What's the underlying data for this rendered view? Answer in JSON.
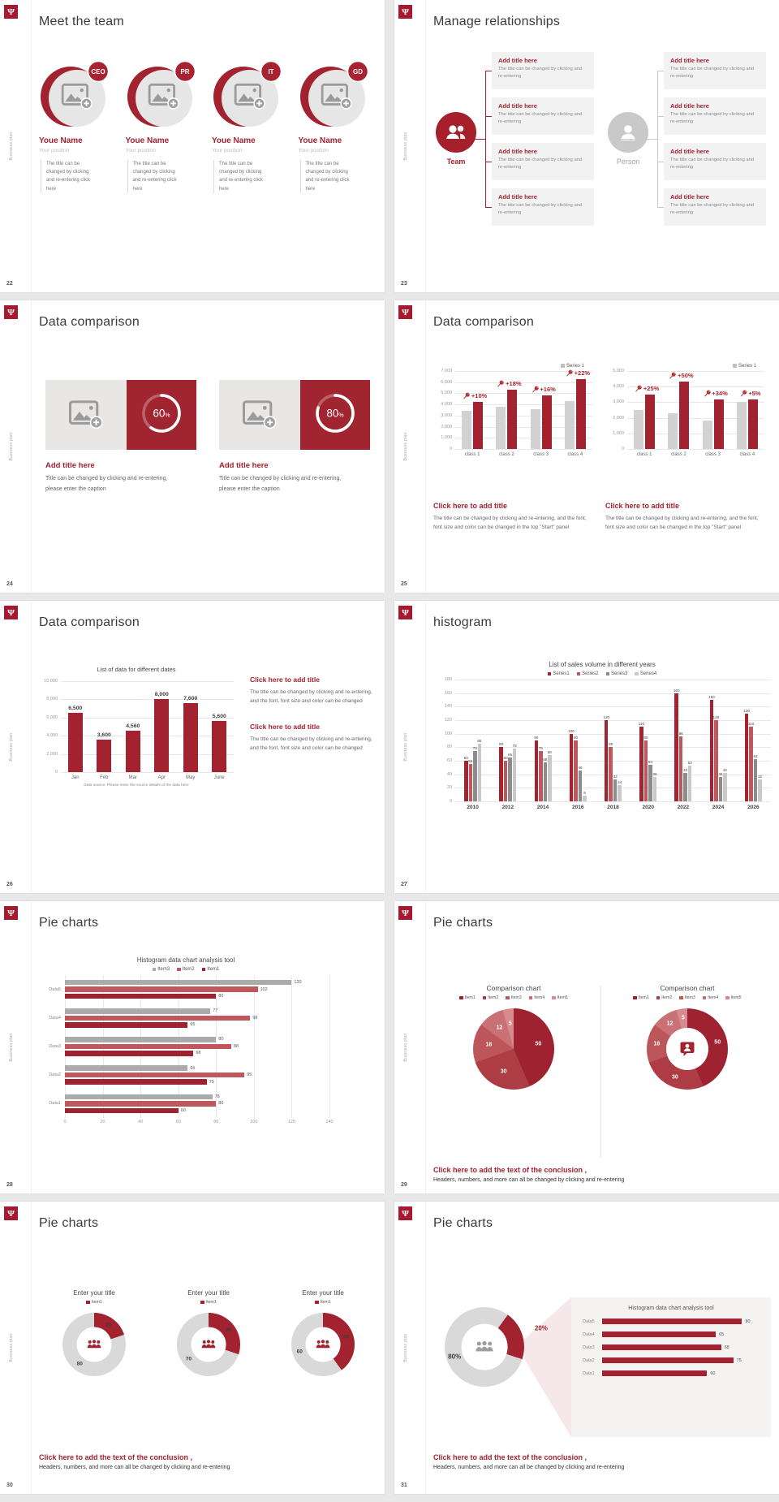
{
  "theme": {
    "crimson": "#a2222f",
    "logo_bg": "#a6192e",
    "red_mid": "#bf585c",
    "gray_series": "#8c8c8c",
    "gray_bar": "#d2d2d2",
    "gray_light": "#c9c9c9",
    "box_bg": "#f2f2f2"
  },
  "common": {
    "side_text": "Business plan",
    "logo_glyph": "Ψ"
  },
  "slides": {
    "s22": {
      "page": "22",
      "title": "Meet the team",
      "members": [
        {
          "badge": "CEO",
          "name": "Youe Name",
          "position": "Your position",
          "desc": "The title can be changed by clicking and re-entering click here"
        },
        {
          "badge": "PR",
          "name": "Youe Name",
          "position": "Your position",
          "desc": "The title can be changed by clicking and re-entering click here"
        },
        {
          "badge": "IT",
          "name": "Youe Name",
          "position": "Your position",
          "desc": "The title can be changed by clicking and re-entering click here"
        },
        {
          "badge": "GD",
          "name": "Youe Name",
          "position": "Your position",
          "desc": "The title can be changed by clicking and re-entering click here"
        }
      ]
    },
    "s23": {
      "page": "23",
      "title": "Manage relationships",
      "team_label": "Team",
      "person_label": "Person",
      "box_count": 4,
      "box_title": "Add title here",
      "box_desc": "The title can be changed by clicking and re-entering"
    },
    "s24": {
      "page": "24",
      "title": "Data comparison",
      "percent_suffix": "%",
      "cards": [
        {
          "percent": 60,
          "percent_label": "60",
          "heading": "Add title here",
          "caption": "Title can be changed by clicking and re-entering, please enter the caption"
        },
        {
          "percent": 80,
          "percent_label": "80",
          "heading": "Add title here",
          "caption": "Title can be changed by clicking and re-entering, please enter the caption"
        }
      ]
    },
    "s25": {
      "page": "25",
      "title": "Data comparison",
      "caption_title": "Click here to add title",
      "caption_body": "The title can be changed by clicking and re-entering, and the font, font size and color can be changed in the top \"Start\" panel"
    },
    "s26": {
      "page": "26",
      "title": "Data comparison",
      "blocks": [
        {
          "t": "Click here to add title",
          "d": "The title can be changed by clicking and re-entering, and the font, font size and color can be changed"
        },
        {
          "t": "Click here to add title",
          "d": "The title can be changed by clicking and re-entering, and the font, font size and color can be changed"
        }
      ]
    },
    "s27": {
      "page": "27",
      "title": "histogram"
    },
    "s28": {
      "page": "28",
      "title": "Pie charts"
    },
    "s29": {
      "page": "29",
      "title": "Pie charts",
      "conclusion_title": "Click here to add the text of the conclusion ,",
      "conclusion_body": "Headers, numbers, and more can all be changed by clicking and re-entering"
    },
    "s30": {
      "page": "30",
      "title": "Pie charts",
      "conclusion_title": "Click here to add the text of the conclusion ,",
      "conclusion_body": "Headers, numbers, and more can all be changed by clicking and re-entering"
    },
    "s31": {
      "page": "31",
      "title": "Pie charts",
      "conclusion_title": "Click here to add the text of the conclusion ,",
      "conclusion_body": "Headers, numbers, and more can all be changed by clicking and re-entering"
    }
  },
  "chart_data": [
    {
      "id": "c25a",
      "type": "bar",
      "legend": [
        "Series 1"
      ],
      "legend_colors": [
        "#c0c0c0"
      ],
      "ymax": 7000,
      "yticks": [
        "7,000",
        "6,000",
        "5,000",
        "4,000",
        "3,000",
        "2,000",
        "1,000",
        "0"
      ],
      "categories": [
        "class 1",
        "class 2",
        "class 3",
        "class 4"
      ],
      "series": [
        {
          "name": "",
          "color": "#d2d2d2",
          "values": [
            3400,
            3800,
            3600,
            4300
          ]
        },
        {
          "name": "Series 1",
          "color": "#a2222f",
          "values": [
            4200,
            5300,
            4800,
            6300
          ]
        }
      ],
      "annotations": {
        "series": 1,
        "labels": [
          "+10%",
          "+18%",
          "+16%",
          "+22%"
        ]
      }
    },
    {
      "id": "c25b",
      "type": "bar",
      "legend": [
        "Series 1"
      ],
      "legend_colors": [
        "#c0c0c0"
      ],
      "ymax": 5000,
      "yticks": [
        "5,000",
        "4,000",
        "3,000",
        "2,000",
        "1,000",
        "0"
      ],
      "categories": [
        "class 1",
        "class 2",
        "class 3",
        "class 4"
      ],
      "series": [
        {
          "name": "",
          "color": "#d2d2d2",
          "values": [
            2500,
            2300,
            1800,
            3000
          ]
        },
        {
          "name": "Series 1",
          "color": "#a2222f",
          "values": [
            3500,
            4300,
            3200,
            3200
          ]
        }
      ],
      "annotations": {
        "series": 1,
        "labels": [
          "+25%",
          "+50%",
          "+34%",
          "+5%"
        ]
      }
    },
    {
      "id": "c26",
      "type": "bar",
      "title": "List of data for different dates",
      "ymax": 10000,
      "show_labels": true,
      "yticks": [
        "10,000",
        "8,000",
        "6,000",
        "4,000",
        "2,000",
        "0"
      ],
      "categories": [
        "Jan",
        "Feb",
        "Mar",
        "Apr",
        "May",
        "June"
      ],
      "series": [
        {
          "name": "",
          "color": "#a2222f",
          "values": [
            6500,
            3600,
            4560,
            8000,
            7600,
            5600
          ],
          "value_labels": [
            "6,500",
            "3,600",
            "4,560",
            "8,000",
            "7,600",
            "5,600"
          ]
        }
      ],
      "footnote": "Data source: Please enter the source details of the data here"
    },
    {
      "id": "c27",
      "type": "bar",
      "title": "List of sales volume in different years",
      "ymax": 180,
      "show_labels": true,
      "legend": [
        "Series1",
        "Series2",
        "Series3",
        "Series4"
      ],
      "legend_colors": [
        "#a32330",
        "#bf585c",
        "#8c8c8c",
        "#c9c9c9"
      ],
      "yticks": [
        "180",
        "160",
        "140",
        "120",
        "100",
        "80",
        "60",
        "40",
        "20",
        "0"
      ],
      "categories": [
        "2010",
        "2012",
        "2014",
        "2016",
        "2018",
        "2020",
        "2022",
        "2024",
        "2026"
      ],
      "series": [
        {
          "name": "Series1",
          "color": "#a32330",
          "values": [
            60,
            80,
            90,
            100,
            120,
            110,
            160,
            150,
            130
          ]
        },
        {
          "name": "Series2",
          "color": "#bf585c",
          "values": [
            55,
            60,
            75,
            90,
            80,
            90,
            96,
            120,
            110
          ]
        },
        {
          "name": "Series3",
          "color": "#8c8c8c",
          "values": [
            75,
            65,
            58,
            46,
            32,
            54,
            42,
            36,
            62
          ]
        },
        {
          "name": "Series4",
          "color": "#c9c9c9",
          "values": [
            85,
            78,
            68,
            9,
            24,
            36,
            53,
            42,
            32
          ]
        }
      ]
    },
    {
      "id": "c28",
      "type": "bar-horizontal",
      "title": "Histogram data chart analysis tool",
      "xmax": 140,
      "legend": [
        "Item3",
        "Item2",
        "Item1"
      ],
      "legend_colors": [
        "#ababab",
        "#bf585c",
        "#9e2230"
      ],
      "xticks": [
        "0",
        "20",
        "40",
        "60",
        "80",
        "100",
        "120",
        "140"
      ],
      "categories": [
        "Data5",
        "Data4",
        "Data3",
        "Data2",
        "Data1"
      ],
      "series": [
        {
          "name": "Item3",
          "color": "#ababab",
          "values": [
            120,
            77,
            80,
            65,
            78
          ]
        },
        {
          "name": "Item2",
          "color": "#bf585c",
          "values": [
            102,
            98,
            88,
            95,
            80
          ]
        },
        {
          "name": "Item1",
          "color": "#9e2230",
          "values": [
            80,
            65,
            68,
            75,
            60
          ]
        }
      ]
    },
    {
      "id": "c29a",
      "type": "pie",
      "title": "Comparison chart",
      "legend": [
        "Item1",
        "Item2",
        "Item3",
        "Item4",
        "Item5"
      ],
      "values": [
        50,
        30,
        18,
        12,
        5
      ],
      "colors": [
        "#9e2230",
        "#ad3c44",
        "#bc565b",
        "#ca7175",
        "#d88b8e"
      ],
      "label_color": "#ffffff",
      "label_size": 7
    },
    {
      "id": "c29b",
      "type": "donut",
      "title": "Comparison chart",
      "inner": 0.52,
      "legend": [
        "Item1",
        "Item2",
        "Item3",
        "Item4",
        "Item5"
      ],
      "values": [
        50,
        30,
        18,
        12,
        5
      ],
      "colors": [
        "#9e2230",
        "#ad3c44",
        "#bc565b",
        "#ca7175",
        "#d88b8e"
      ],
      "label_color": "#ffffff",
      "label_size": 7
    },
    {
      "id": "c30a",
      "type": "donut",
      "title": "Enter your title",
      "legend": [
        "Item1"
      ],
      "legend_colors": [
        "#a2222f"
      ],
      "inner": 0.55,
      "values": [
        20,
        80
      ],
      "colors": [
        "#a2222f",
        "#d9d9d9"
      ],
      "label_color": "#3c3c3c",
      "label_size": 6.5
    },
    {
      "id": "c30b",
      "type": "donut",
      "title": "Enter your title",
      "legend": [
        "Item1"
      ],
      "legend_colors": [
        "#a2222f"
      ],
      "inner": 0.55,
      "values": [
        30,
        70
      ],
      "colors": [
        "#a2222f",
        "#d9d9d9"
      ],
      "label_color": "#3c3c3c",
      "label_size": 6.5
    },
    {
      "id": "c30c",
      "type": "donut",
      "title": "Enter your title",
      "legend": [
        "Item1"
      ],
      "legend_colors": [
        "#a2222f"
      ],
      "inner": 0.55,
      "values": [
        40,
        60
      ],
      "colors": [
        "#a2222f",
        "#d9d9d9"
      ],
      "label_color": "#3c3c3c",
      "label_size": 6.5
    },
    {
      "id": "c31d",
      "type": "donut",
      "inner": 0.58,
      "start": 36,
      "values": [
        20,
        80
      ],
      "colors": [
        "#a2222f",
        "#d9d9d9"
      ],
      "labels": [
        "20%",
        "80%"
      ],
      "label_colors": [
        "#a2222f",
        "#3c3c3c"
      ],
      "label_rs": [
        1.5,
        0.79
      ],
      "label_size": 8
    },
    {
      "id": "c31b",
      "type": "bar-horizontal",
      "title": "Histogram data chart analysis tool",
      "xmax": 90,
      "color": "#a2222f",
      "categories": [
        "Data5",
        "Data4",
        "Data3",
        "Data2",
        "Data1"
      ],
      "values": [
        80,
        65,
        68,
        75,
        60
      ]
    }
  ]
}
